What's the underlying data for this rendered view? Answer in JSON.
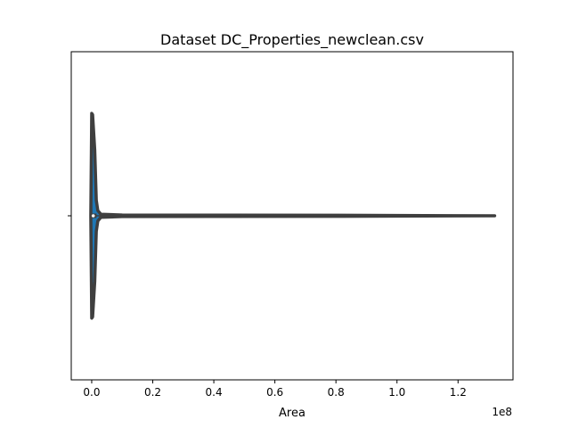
{
  "chart_data": {
    "type": "violin",
    "orientation": "horizontal",
    "title": "Dataset DC_Properties_newclean.csv",
    "xlabel": "Area",
    "ylabel": "",
    "x_offset_label": "1e8",
    "x_scale": 100000000,
    "xlim": [
      -6700000,
      138000000
    ],
    "x_ticks": [
      0,
      20000000,
      40000000,
      60000000,
      80000000,
      100000000,
      120000000
    ],
    "x_tick_labels": [
      "0.0",
      "0.2",
      "0.4",
      "0.6",
      "0.8",
      "1.0",
      "1.2"
    ],
    "y_ticks": [
      ""
    ],
    "grid": false,
    "colors": {
      "violin_fill": "#1f77b4",
      "violin_edge": "#3f3f3f",
      "box_line": "#3f3f3f",
      "median_marker": "#ffffff"
    },
    "violin": {
      "min": 0,
      "max": 132000000,
      "q1": 200000,
      "median": 500000,
      "q3": 1000000,
      "density_profile": [
        {
          "x": -300000,
          "half_width": 0.0
        },
        {
          "x": 0,
          "half_width": 0.78
        },
        {
          "x": 300000,
          "half_width": 0.77
        },
        {
          "x": 1000000,
          "half_width": 0.5
        },
        {
          "x": 1500000,
          "half_width": 0.12
        },
        {
          "x": 2000000,
          "half_width": 0.04
        },
        {
          "x": 3000000,
          "half_width": 0.012
        },
        {
          "x": 10000000,
          "half_width": 0.006
        },
        {
          "x": 40000000,
          "half_width": 0.005
        },
        {
          "x": 80000000,
          "half_width": 0.004
        },
        {
          "x": 132000000,
          "half_width": 0.0
        }
      ]
    }
  }
}
